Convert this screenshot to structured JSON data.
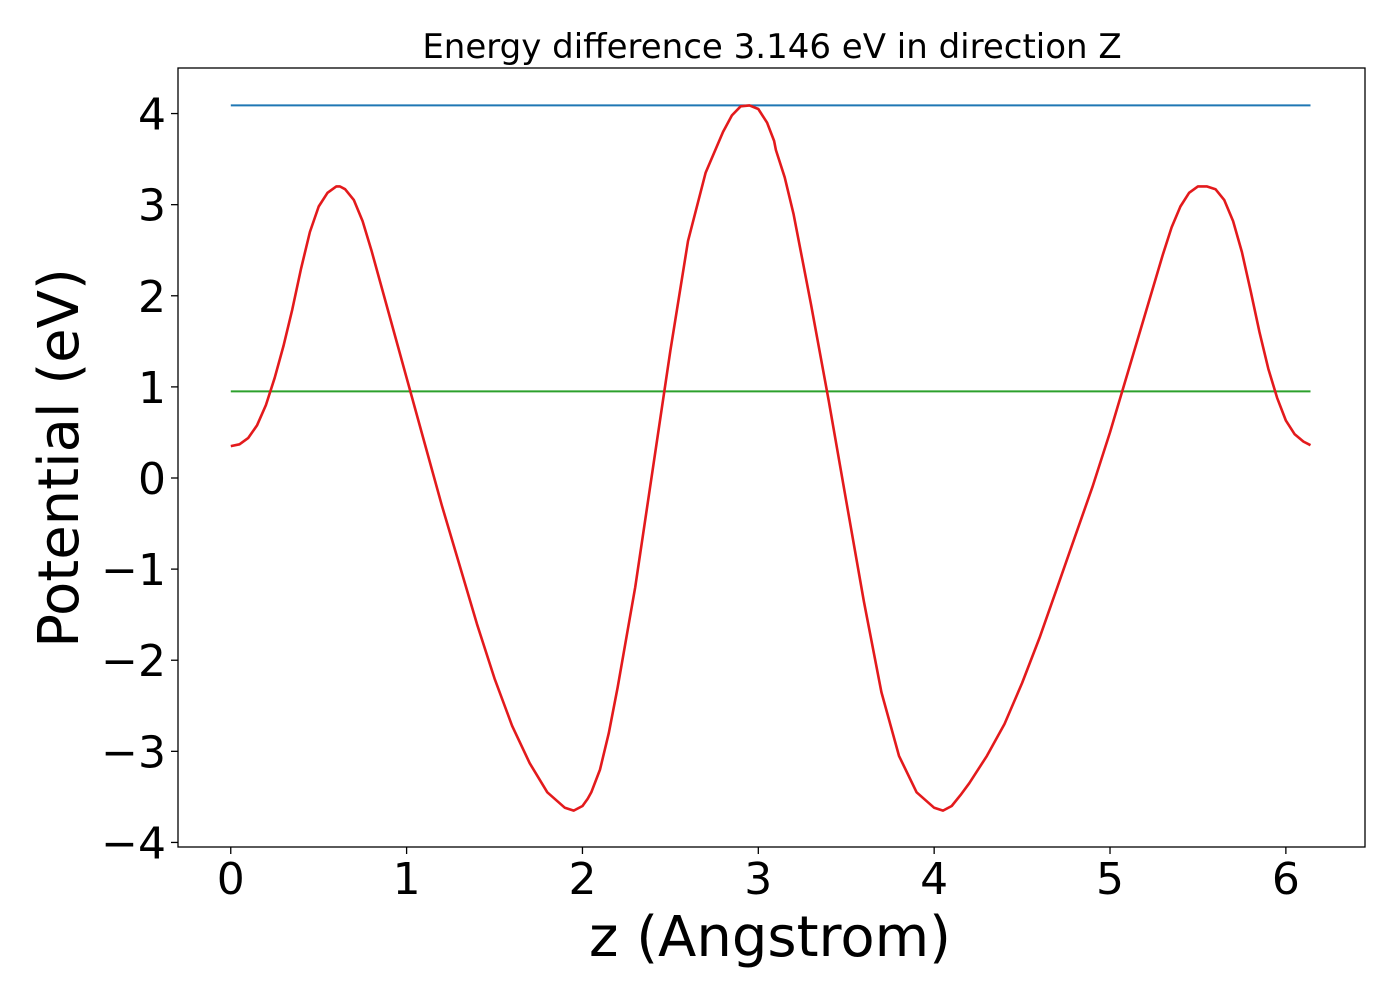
{
  "chart_data": {
    "type": "line",
    "title": "Energy difference 3.146 eV in direction Z",
    "xlabel": "z (Angstrom)",
    "ylabel": "Potential (eV)",
    "xlim": [
      -0.3,
      6.45
    ],
    "ylim": [
      -4.05,
      4.5
    ],
    "xticks": [
      0,
      1,
      2,
      3,
      4,
      5,
      6
    ],
    "xtick_labels": [
      "0",
      "1",
      "2",
      "3",
      "4",
      "5",
      "6"
    ],
    "yticks": [
      -4,
      -3,
      -2,
      -1,
      0,
      1,
      2,
      3,
      4
    ],
    "ytick_labels": [
      "−4",
      "−3",
      "−2",
      "−1",
      "0",
      "1",
      "2",
      "3",
      "4"
    ],
    "grid": false,
    "series": [
      {
        "color": "#1f77b4",
        "x": [
          0,
          6.14
        ],
        "y": [
          4.09,
          4.09
        ]
      },
      {
        "color": "#2ca02c",
        "x": [
          0,
          6.14
        ],
        "y": [
          0.95,
          0.95
        ]
      },
      {
        "color": "#e31a1c",
        "x": [
          0,
          0.05,
          0.1,
          0.15,
          0.2,
          0.25,
          0.3,
          0.35,
          0.4,
          0.45,
          0.5,
          0.55,
          0.6,
          0.62,
          0.65,
          0.7,
          0.75,
          0.8,
          0.85,
          0.9,
          0.95,
          1.0,
          1.1,
          1.2,
          1.3,
          1.4,
          1.5,
          1.6,
          1.7,
          1.8,
          1.9,
          1.95,
          2.0,
          2.03,
          2.05,
          2.1,
          2.15,
          2.2,
          2.3,
          2.4,
          2.5,
          2.6,
          2.7,
          2.8,
          2.85,
          2.9,
          2.95,
          3.0,
          3.05,
          3.09,
          3.1,
          3.15,
          3.2,
          3.25,
          3.3,
          3.4,
          3.5,
          3.6,
          3.7,
          3.8,
          3.9,
          4.0,
          4.05,
          4.1,
          4.15,
          4.2,
          4.3,
          4.4,
          4.5,
          4.6,
          4.7,
          4.8,
          4.9,
          5.0,
          5.1,
          5.2,
          5.3,
          5.35,
          5.4,
          5.45,
          5.5,
          5.55,
          5.6,
          5.65,
          5.7,
          5.75,
          5.8,
          5.85,
          5.9,
          5.95,
          6.0,
          6.05,
          6.1,
          6.14
        ],
        "y": [
          0.35,
          0.37,
          0.44,
          0.58,
          0.8,
          1.1,
          1.45,
          1.85,
          2.3,
          2.7,
          2.98,
          3.13,
          3.2,
          3.2,
          3.17,
          3.05,
          2.82,
          2.5,
          2.15,
          1.8,
          1.45,
          1.1,
          0.4,
          -0.3,
          -0.95,
          -1.6,
          -2.2,
          -2.72,
          -3.13,
          -3.45,
          -3.62,
          -3.65,
          -3.6,
          -3.52,
          -3.45,
          -3.2,
          -2.8,
          -2.3,
          -1.2,
          0.1,
          1.4,
          2.6,
          3.35,
          3.8,
          3.98,
          4.08,
          4.09,
          4.05,
          3.9,
          3.7,
          3.6,
          3.3,
          2.9,
          2.4,
          1.9,
          0.85,
          -0.25,
          -1.35,
          -2.35,
          -3.05,
          -3.45,
          -3.62,
          -3.65,
          -3.6,
          -3.48,
          -3.35,
          -3.05,
          -2.7,
          -2.25,
          -1.75,
          -1.2,
          -0.65,
          -0.1,
          0.5,
          1.15,
          1.8,
          2.45,
          2.75,
          2.98,
          3.13,
          3.2,
          3.2,
          3.17,
          3.05,
          2.82,
          2.48,
          2.05,
          1.6,
          1.2,
          0.88,
          0.63,
          0.48,
          0.4,
          0.36
        ]
      }
    ]
  }
}
